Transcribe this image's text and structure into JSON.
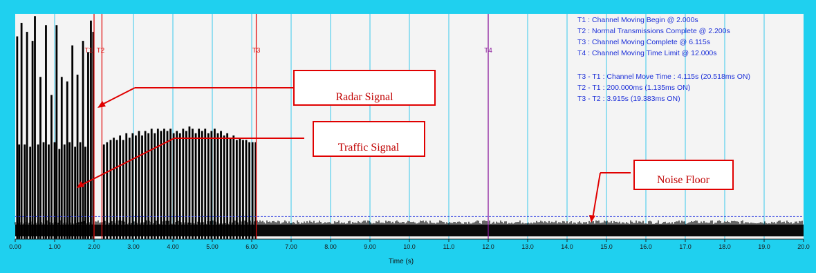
{
  "chart_data": {
    "type": "bar",
    "xlabel": "Time (s)",
    "xlim": [
      0.0,
      20.0
    ],
    "x_ticks": [
      "0.00",
      "1.00",
      "2.00",
      "3.00",
      "4.00",
      "5.00",
      "6.00",
      "7.00",
      "8.00",
      "9.00",
      "10.0",
      "11.0",
      "12.0",
      "13.0",
      "14.0",
      "15.0",
      "16.0",
      "17.0",
      "18.0",
      "19.0",
      "20.0"
    ],
    "grid": true,
    "noise_floor_level": 0.1,
    "markers": [
      {
        "label": "T1",
        "x": 2.0,
        "color": "#e01010"
      },
      {
        "label": "T2",
        "x": 2.2,
        "color": "#e01010"
      },
      {
        "label": "T3",
        "x": 6.115,
        "color": "#e01010"
      },
      {
        "label": "T4",
        "x": 12.0,
        "color": "#8a1a9a"
      }
    ],
    "info_lines": [
      "T1 : Channel Moving Begin @ 2.000s",
      "T2 : Normal Transmissions Complete @ 2.200s",
      "T3 : Channel Moving Complete @ 6.115s",
      "T4 : Channel Moving Time Limit @ 12.000s",
      "",
      "T3 - T1 : Channel Move Time : 4.115s (20.518ms ON)",
      "T2 - T1 : 200.000ms (1.135ms ON)",
      "T3 - T2 : 3.915s (19.383ms ON)"
    ],
    "annotations": [
      {
        "label": "Radar Signal"
      },
      {
        "label": "Traffic Signal"
      },
      {
        "label": "Noise Floor"
      }
    ],
    "pulses": [
      {
        "x": 0.05,
        "y": 0.9
      },
      {
        "x": 0.1,
        "y": 0.42
      },
      {
        "x": 0.16,
        "y": 0.96
      },
      {
        "x": 0.24,
        "y": 0.42
      },
      {
        "x": 0.3,
        "y": 0.92
      },
      {
        "x": 0.38,
        "y": 0.41
      },
      {
        "x": 0.44,
        "y": 0.88
      },
      {
        "x": 0.5,
        "y": 0.99
      },
      {
        "x": 0.58,
        "y": 0.42
      },
      {
        "x": 0.64,
        "y": 0.72
      },
      {
        "x": 0.72,
        "y": 0.43
      },
      {
        "x": 0.78,
        "y": 0.95
      },
      {
        "x": 0.85,
        "y": 0.42
      },
      {
        "x": 0.92,
        "y": 0.64
      },
      {
        "x": 1.0,
        "y": 0.43
      },
      {
        "x": 1.05,
        "y": 0.95
      },
      {
        "x": 1.12,
        "y": 0.4
      },
      {
        "x": 1.18,
        "y": 0.72
      },
      {
        "x": 1.25,
        "y": 0.42
      },
      {
        "x": 1.32,
        "y": 0.7
      },
      {
        "x": 1.38,
        "y": 0.43
      },
      {
        "x": 1.45,
        "y": 0.86
      },
      {
        "x": 1.52,
        "y": 0.41
      },
      {
        "x": 1.58,
        "y": 0.73
      },
      {
        "x": 1.65,
        "y": 0.43
      },
      {
        "x": 1.72,
        "y": 0.88
      },
      {
        "x": 1.78,
        "y": 0.41
      },
      {
        "x": 1.85,
        "y": 0.83
      },
      {
        "x": 1.92,
        "y": 0.97
      },
      {
        "x": 1.98,
        "y": 0.92
      },
      {
        "x": 2.25,
        "y": 0.42
      },
      {
        "x": 2.33,
        "y": 0.43
      },
      {
        "x": 2.42,
        "y": 0.44
      },
      {
        "x": 2.5,
        "y": 0.45
      },
      {
        "x": 2.58,
        "y": 0.44
      },
      {
        "x": 2.66,
        "y": 0.46
      },
      {
        "x": 2.74,
        "y": 0.44
      },
      {
        "x": 2.82,
        "y": 0.47
      },
      {
        "x": 2.9,
        "y": 0.45
      },
      {
        "x": 2.98,
        "y": 0.47
      },
      {
        "x": 3.06,
        "y": 0.46
      },
      {
        "x": 3.14,
        "y": 0.48
      },
      {
        "x": 3.22,
        "y": 0.46
      },
      {
        "x": 3.3,
        "y": 0.48
      },
      {
        "x": 3.38,
        "y": 0.47
      },
      {
        "x": 3.46,
        "y": 0.49
      },
      {
        "x": 3.54,
        "y": 0.47
      },
      {
        "x": 3.62,
        "y": 0.49
      },
      {
        "x": 3.7,
        "y": 0.48
      },
      {
        "x": 3.78,
        "y": 0.49
      },
      {
        "x": 3.86,
        "y": 0.48
      },
      {
        "x": 3.94,
        "y": 0.49
      },
      {
        "x": 4.02,
        "y": 0.47
      },
      {
        "x": 4.1,
        "y": 0.48
      },
      {
        "x": 4.18,
        "y": 0.47
      },
      {
        "x": 4.26,
        "y": 0.49
      },
      {
        "x": 4.34,
        "y": 0.48
      },
      {
        "x": 4.42,
        "y": 0.5
      },
      {
        "x": 4.5,
        "y": 0.49
      },
      {
        "x": 4.58,
        "y": 0.47
      },
      {
        "x": 4.66,
        "y": 0.49
      },
      {
        "x": 4.74,
        "y": 0.48
      },
      {
        "x": 4.82,
        "y": 0.49
      },
      {
        "x": 4.9,
        "y": 0.47
      },
      {
        "x": 4.98,
        "y": 0.48
      },
      {
        "x": 5.06,
        "y": 0.49
      },
      {
        "x": 5.14,
        "y": 0.47
      },
      {
        "x": 5.22,
        "y": 0.48
      },
      {
        "x": 5.3,
        "y": 0.46
      },
      {
        "x": 5.38,
        "y": 0.47
      },
      {
        "x": 5.46,
        "y": 0.45
      },
      {
        "x": 5.54,
        "y": 0.46
      },
      {
        "x": 5.62,
        "y": 0.44
      },
      {
        "x": 5.7,
        "y": 0.45
      },
      {
        "x": 5.78,
        "y": 0.44
      },
      {
        "x": 5.86,
        "y": 0.44
      },
      {
        "x": 5.94,
        "y": 0.43
      },
      {
        "x": 6.02,
        "y": 0.43
      },
      {
        "x": 6.1,
        "y": 0.43
      }
    ]
  }
}
